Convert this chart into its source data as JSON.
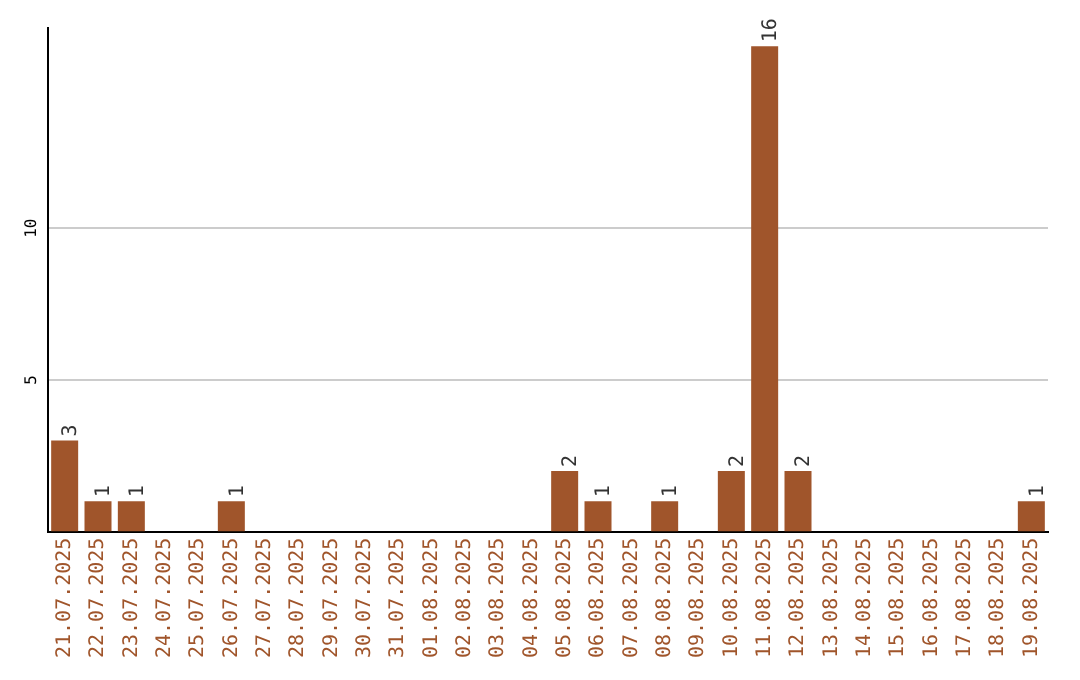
{
  "chart_data": {
    "type": "bar",
    "categories": [
      "21.07.2025",
      "22.07.2025",
      "23.07.2025",
      "24.07.2025",
      "25.07.2025",
      "26.07.2025",
      "27.07.2025",
      "28.07.2025",
      "29.07.2025",
      "30.07.2025",
      "31.07.2025",
      "01.08.2025",
      "02.08.2025",
      "03.08.2025",
      "04.08.2025",
      "05.08.2025",
      "06.08.2025",
      "07.08.2025",
      "08.08.2025",
      "09.08.2025",
      "10.08.2025",
      "11.08.2025",
      "12.08.2025",
      "13.08.2025",
      "14.08.2025",
      "15.08.2025",
      "16.08.2025",
      "17.08.2025",
      "18.08.2025",
      "19.08.2025"
    ],
    "values": [
      3,
      1,
      1,
      0,
      0,
      1,
      0,
      0,
      0,
      0,
      0,
      0,
      0,
      0,
      0,
      2,
      1,
      0,
      1,
      0,
      2,
      16,
      2,
      0,
      0,
      0,
      0,
      0,
      0,
      1
    ],
    "value_labels": [
      "3",
      "1",
      "1",
      null,
      null,
      "1",
      null,
      null,
      null,
      null,
      null,
      null,
      null,
      null,
      null,
      "2",
      "1",
      null,
      "1",
      null,
      "2",
      "16",
      "2",
      null,
      null,
      null,
      null,
      null,
      null,
      "1"
    ],
    "color": "#a0552b",
    "ylim": [
      0,
      16.6
    ],
    "yticks": [
      5,
      10
    ],
    "grid": "y"
  }
}
